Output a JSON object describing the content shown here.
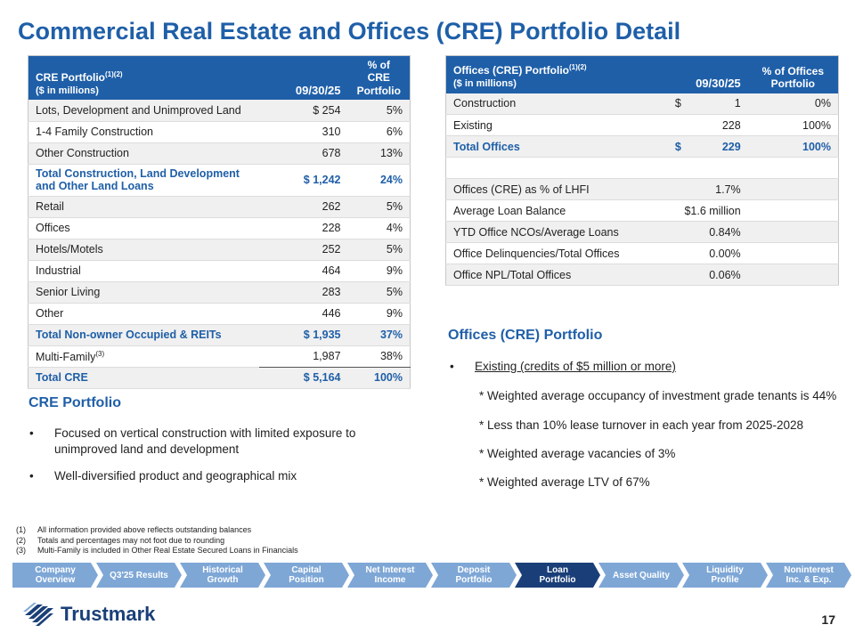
{
  "title": "Commercial Real Estate and Offices (CRE) Portfolio Detail",
  "cre_table": {
    "header_label": "CRE Portfolio",
    "header_sup": "(1)(2)",
    "header_sub": "($ in millions)",
    "col_date": "09/30/25",
    "col_pct_1": "% of CRE",
    "col_pct_2": "Portfolio",
    "rows": [
      {
        "label": "Lots, Development and Unimproved Land",
        "value": "$ 254",
        "pct": "5%"
      },
      {
        "label": "1-4 Family Construction",
        "value": "310",
        "pct": "6%"
      },
      {
        "label": "Other Construction",
        "value": "678",
        "pct": "13%"
      },
      {
        "label": "Total Construction, Land Development and Other Land Loans",
        "value": "$ 1,242",
        "pct": "24%"
      },
      {
        "label": "Retail",
        "value": "262",
        "pct": "5%"
      },
      {
        "label": "Offices",
        "value": "228",
        "pct": "4%"
      },
      {
        "label": "Hotels/Motels",
        "value": "252",
        "pct": "5%"
      },
      {
        "label": "Industrial",
        "value": "464",
        "pct": "9%"
      },
      {
        "label": "Senior Living",
        "value": "283",
        "pct": "5%"
      },
      {
        "label": "Other",
        "value": "446",
        "pct": "9%"
      },
      {
        "label": "Total Non-owner Occupied & REITs",
        "value": "$ 1,935",
        "pct": "37%"
      },
      {
        "label": "Multi-Family",
        "label_sup": "(3)",
        "value": "1,987",
        "pct": "38%"
      },
      {
        "label": "Total CRE",
        "value": "$ 5,164",
        "pct": "100%"
      }
    ]
  },
  "offices_table": {
    "header_label": "Offices (CRE) Portfolio",
    "header_sup": "(1)(2)",
    "header_sub": "($ in millions)",
    "col_date": "09/30/25",
    "col_pct_1": "% of Offices",
    "col_pct_2": "Portfolio",
    "rows": [
      {
        "label": "Construction",
        "cur": "$",
        "value": "1",
        "pct": "0%"
      },
      {
        "label": "Existing",
        "cur": "",
        "value": "228",
        "pct": "100%"
      },
      {
        "label": "Total Offices",
        "cur": "$",
        "value": "229",
        "pct": "100%"
      }
    ],
    "metrics": [
      {
        "label": "Offices (CRE) as % of LHFI",
        "value": "1.7%"
      },
      {
        "label": "Average Loan Balance",
        "value": "$1.6 million"
      },
      {
        "label": "YTD Office NCOs/Average Loans",
        "value": "0.84%"
      },
      {
        "label": "Office Delinquencies/Total Offices",
        "value": "0.00%"
      },
      {
        "label": "Office NPL/Total Offices",
        "value": "0.06%"
      }
    ]
  },
  "cre_section": {
    "heading": "CRE Portfolio",
    "bullet_1": "Focused on vertical construction with limited exposure to unimproved land and development",
    "bullet_2": "Well-diversified product and geographical mix",
    "bullet_glyph": "•"
  },
  "offices_section": {
    "heading": "Offices (CRE) Portfolio",
    "bullet_1": "Existing (credits of $5 million or more)",
    "bullet_glyph": "•",
    "lines": [
      "* Weighted average occupancy of investment grade tenants is 44%",
      "*  Less than 10% lease turnover in each year from 2025-2028",
      "*  Weighted average vacancies of 3%",
      "*  Weighted average LTV of 67%"
    ]
  },
  "footnotes": [
    {
      "num": "(1)",
      "text": "All information provided above reflects outstanding balances"
    },
    {
      "num": "(2)",
      "text": "Totals and percentages may not foot due to rounding"
    },
    {
      "num": "(3)",
      "text": "Multi-Family is included in Other Real Estate Secured  Loans in Financials"
    }
  ],
  "nav": [
    {
      "l1": "Company",
      "l2": "Overview"
    },
    {
      "l1": "Q3'25 Results",
      "l2": ""
    },
    {
      "l1": "Historical",
      "l2": "Growth"
    },
    {
      "l1": "Capital",
      "l2": "Position"
    },
    {
      "l1": "Net Interest",
      "l2": "Income"
    },
    {
      "l1": "Deposit",
      "l2": "Portfolio"
    },
    {
      "l1": "Loan",
      "l2": "Portfolio"
    },
    {
      "l1": "Asset Quality",
      "l2": ""
    },
    {
      "l1": "Liquidity",
      "l2": "Profile"
    },
    {
      "l1": "Noninterest",
      "l2": "Inc. & Exp."
    }
  ],
  "nav_active_index": 6,
  "logo_text": "Trustmark",
  "page_number": "17",
  "colors": {
    "brand_blue": "#1f5fa8",
    "nav_light": "#7ea7d6",
    "nav_active": "#1a3f78"
  }
}
